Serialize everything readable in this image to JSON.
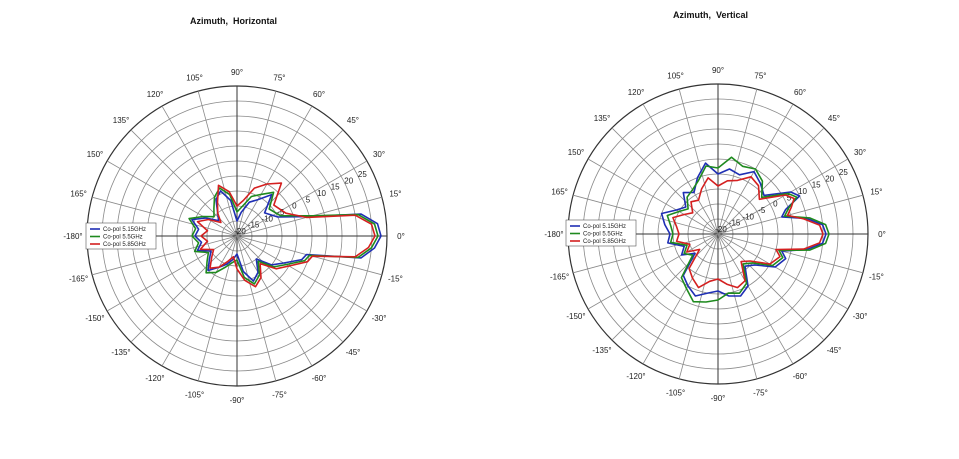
{
  "charts": [
    {
      "title": "Azimuth,  Horizontal",
      "legend": [
        "Co-pol 5.15GHz",
        "Co-pol 5.5GHz",
        "Co-pol 5.85GHz"
      ],
      "colors": [
        "#1f2fb4",
        "#1e8a1e",
        "#d42020"
      ]
    },
    {
      "title": "Azimuth,  Vertical",
      "legend": [
        "Co-pol 5.15GHz",
        "Co-pol 5.5GHz",
        "Co-pol 5.85GHz"
      ],
      "colors": [
        "#1f2fb4",
        "#1e8a1e",
        "#d42020"
      ]
    }
  ],
  "angle_labels": [
    "0°",
    "15°",
    "30°",
    "45°",
    "60°",
    "75°",
    "90°",
    "105°",
    "120°",
    "135°",
    "150°",
    "165°",
    "-180°",
    "-165°",
    "-150°",
    "-135°",
    "-120°",
    "-105°",
    "-90°",
    "-75°",
    "-60°",
    "-45°",
    "-30°",
    "-15°"
  ],
  "radial_labels": [
    "25",
    "20",
    "15",
    "10",
    "5",
    "0",
    "-5",
    "-10",
    "-15",
    "-20"
  ],
  "chart_data": [
    {
      "type": "polar",
      "title": "Azimuth,  Horizontal",
      "r_range": [
        -20,
        30
      ],
      "r_ticks": [
        25,
        20,
        15,
        10,
        5,
        0,
        -5,
        -10,
        -15,
        -20
      ],
      "legend_position": "left",
      "series": [
        {
          "name": "Co-pol 5.15GHz",
          "points": [
            [
              0,
              28
            ],
            [
              5,
              27
            ],
            [
              10,
              22
            ],
            [
              15,
              5
            ],
            [
              25,
              -5
            ],
            [
              40,
              -8
            ],
            [
              50,
              -2
            ],
            [
              60,
              -6
            ],
            [
              70,
              -8
            ],
            [
              80,
              -12
            ],
            [
              90,
              -15
            ],
            [
              100,
              -8
            ],
            [
              110,
              -4
            ],
            [
              120,
              -6
            ],
            [
              130,
              -10
            ],
            [
              140,
              -12
            ],
            [
              150,
              -8
            ],
            [
              160,
              -4
            ],
            [
              170,
              -7
            ],
            [
              180,
              -6
            ],
            [
              190,
              -8
            ],
            [
              200,
              -6
            ],
            [
              210,
              -10
            ],
            [
              220,
              -8
            ],
            [
              230,
              -5
            ],
            [
              240,
              -8
            ],
            [
              250,
              -10
            ],
            [
              260,
              -12
            ],
            [
              270,
              -14
            ],
            [
              280,
              -8
            ],
            [
              290,
              -4
            ],
            [
              300,
              -6
            ],
            [
              310,
              -10
            ],
            [
              320,
              -5
            ],
            [
              330,
              -2
            ],
            [
              340,
              3
            ],
            [
              345,
              4
            ],
            [
              350,
              22
            ],
            [
              355,
              26
            ]
          ]
        },
        {
          "name": "Co-pol 5.5GHz",
          "points": [
            [
              0,
              27
            ],
            [
              5,
              26
            ],
            [
              10,
              21
            ],
            [
              15,
              6
            ],
            [
              25,
              -4
            ],
            [
              40,
              -6
            ],
            [
              50,
              -1
            ],
            [
              60,
              -4
            ],
            [
              70,
              -6
            ],
            [
              80,
              -10
            ],
            [
              90,
              -12
            ],
            [
              100,
              -6
            ],
            [
              110,
              -3
            ],
            [
              120,
              -5
            ],
            [
              130,
              -8
            ],
            [
              140,
              -10
            ],
            [
              150,
              -7
            ],
            [
              160,
              -3
            ],
            [
              170,
              -6
            ],
            [
              180,
              -5
            ],
            [
              190,
              -7
            ],
            [
              200,
              -5
            ],
            [
              210,
              -9
            ],
            [
              220,
              -7
            ],
            [
              230,
              -4
            ],
            [
              240,
              -6
            ],
            [
              250,
              -9
            ],
            [
              260,
              -11
            ],
            [
              270,
              -12
            ],
            [
              280,
              -6
            ],
            [
              290,
              -3
            ],
            [
              300,
              -5
            ],
            [
              310,
              -9
            ],
            [
              320,
              -4
            ],
            [
              330,
              -1
            ],
            [
              340,
              4
            ],
            [
              345,
              5
            ],
            [
              350,
              21
            ],
            [
              355,
              25
            ]
          ]
        },
        {
          "name": "Co-pol 5.85GHz",
          "points": [
            [
              0,
              26
            ],
            [
              5,
              25
            ],
            [
              10,
              20
            ],
            [
              15,
              4
            ],
            [
              25,
              -2
            ],
            [
              40,
              -4
            ],
            [
              50,
              3
            ],
            [
              60,
              0
            ],
            [
              70,
              -3
            ],
            [
              80,
              -8
            ],
            [
              90,
              -10
            ],
            [
              100,
              -5
            ],
            [
              110,
              -2
            ],
            [
              120,
              -7
            ],
            [
              130,
              -10
            ],
            [
              140,
              -13
            ],
            [
              150,
              -9
            ],
            [
              160,
              -6
            ],
            [
              170,
              -10
            ],
            [
              180,
              -8
            ],
            [
              190,
              -10
            ],
            [
              200,
              -7
            ],
            [
              210,
              -11
            ],
            [
              220,
              -9
            ],
            [
              230,
              -6
            ],
            [
              240,
              -8
            ],
            [
              250,
              -11
            ],
            [
              260,
              -13
            ],
            [
              270,
              -9
            ],
            [
              280,
              -5
            ],
            [
              290,
              -2
            ],
            [
              300,
              -4
            ],
            [
              310,
              -8
            ],
            [
              320,
              -3
            ],
            [
              330,
              0
            ],
            [
              340,
              5
            ],
            [
              345,
              6
            ],
            [
              350,
              20
            ],
            [
              355,
              24
            ]
          ]
        }
      ]
    },
    {
      "type": "polar",
      "title": "Azimuth,  Vertical",
      "r_range": [
        -20,
        30
      ],
      "r_ticks": [
        25,
        20,
        15,
        10,
        5,
        0,
        -5,
        -10,
        -15,
        -20
      ],
      "legend_position": "left",
      "series": [
        {
          "name": "Co-pol 5.15GHz",
          "points": [
            [
              0,
              16
            ],
            [
              5,
              15
            ],
            [
              10,
              10
            ],
            [
              15,
              2
            ],
            [
              20,
              4
            ],
            [
              25,
              10
            ],
            [
              30,
              8
            ],
            [
              40,
              0
            ],
            [
              50,
              2
            ],
            [
              60,
              4
            ],
            [
              70,
              1
            ],
            [
              80,
              2
            ],
            [
              90,
              0
            ],
            [
              100,
              4
            ],
            [
              110,
              0
            ],
            [
              120,
              -4
            ],
            [
              130,
              -2
            ],
            [
              140,
              -6
            ],
            [
              150,
              -4
            ],
            [
              160,
              0
            ],
            [
              170,
              -2
            ],
            [
              180,
              -4
            ],
            [
              190,
              -3
            ],
            [
              200,
              -8
            ],
            [
              210,
              -6
            ],
            [
              220,
              -10
            ],
            [
              230,
              -2
            ],
            [
              240,
              0
            ],
            [
              250,
              2
            ],
            [
              260,
              0
            ],
            [
              270,
              -1
            ],
            [
              280,
              1
            ],
            [
              290,
              2
            ],
            [
              300,
              0
            ],
            [
              310,
              -6
            ],
            [
              320,
              -4
            ],
            [
              330,
              2
            ],
            [
              340,
              4
            ],
            [
              345,
              2
            ],
            [
              350,
              10
            ],
            [
              355,
              15
            ]
          ]
        },
        {
          "name": "Co-pol 5.5GHz",
          "points": [
            [
              0,
              17
            ],
            [
              5,
              16
            ],
            [
              10,
              11
            ],
            [
              15,
              3
            ],
            [
              20,
              5
            ],
            [
              25,
              9
            ],
            [
              30,
              7
            ],
            [
              40,
              -1
            ],
            [
              50,
              3
            ],
            [
              60,
              5
            ],
            [
              70,
              4
            ],
            [
              80,
              6
            ],
            [
              90,
              2
            ],
            [
              100,
              3
            ],
            [
              110,
              -1
            ],
            [
              120,
              -3
            ],
            [
              130,
              -4
            ],
            [
              140,
              -7
            ],
            [
              150,
              -5
            ],
            [
              160,
              -2
            ],
            [
              170,
              -4
            ],
            [
              180,
              -5
            ],
            [
              190,
              -4
            ],
            [
              200,
              -9
            ],
            [
              210,
              -7
            ],
            [
              220,
              -9
            ],
            [
              230,
              -1
            ],
            [
              240,
              1
            ],
            [
              250,
              4
            ],
            [
              260,
              3
            ],
            [
              270,
              2
            ],
            [
              280,
              0
            ],
            [
              290,
              1
            ],
            [
              300,
              -1
            ],
            [
              310,
              -7
            ],
            [
              320,
              -5
            ],
            [
              330,
              1
            ],
            [
              340,
              3
            ],
            [
              345,
              1
            ],
            [
              350,
              11
            ],
            [
              355,
              16
            ]
          ]
        },
        {
          "name": "Co-pol 5.85GHz",
          "points": [
            [
              0,
              15
            ],
            [
              5,
              14
            ],
            [
              10,
              9
            ],
            [
              15,
              4
            ],
            [
              20,
              6
            ],
            [
              25,
              8
            ],
            [
              30,
              6
            ],
            [
              40,
              -2
            ],
            [
              50,
              1
            ],
            [
              60,
              2
            ],
            [
              70,
              -1
            ],
            [
              80,
              -2
            ],
            [
              90,
              -4
            ],
            [
              100,
              -1
            ],
            [
              110,
              -4
            ],
            [
              120,
              -7
            ],
            [
              130,
              -6
            ],
            [
              140,
              -9
            ],
            [
              150,
              -7
            ],
            [
              160,
              -4
            ],
            [
              170,
              -6
            ],
            [
              180,
              -7
            ],
            [
              190,
              -6
            ],
            [
              200,
              -10
            ],
            [
              210,
              -8
            ],
            [
              220,
              -12
            ],
            [
              230,
              -5
            ],
            [
              240,
              -3
            ],
            [
              250,
              -1
            ],
            [
              260,
              -4
            ],
            [
              270,
              -5
            ],
            [
              280,
              -3
            ],
            [
              290,
              -1
            ],
            [
              300,
              -2
            ],
            [
              310,
              -8
            ],
            [
              320,
              -6
            ],
            [
              330,
              0
            ],
            [
              340,
              2
            ],
            [
              345,
              0
            ],
            [
              350,
              9
            ],
            [
              355,
              14
            ]
          ]
        }
      ]
    }
  ]
}
